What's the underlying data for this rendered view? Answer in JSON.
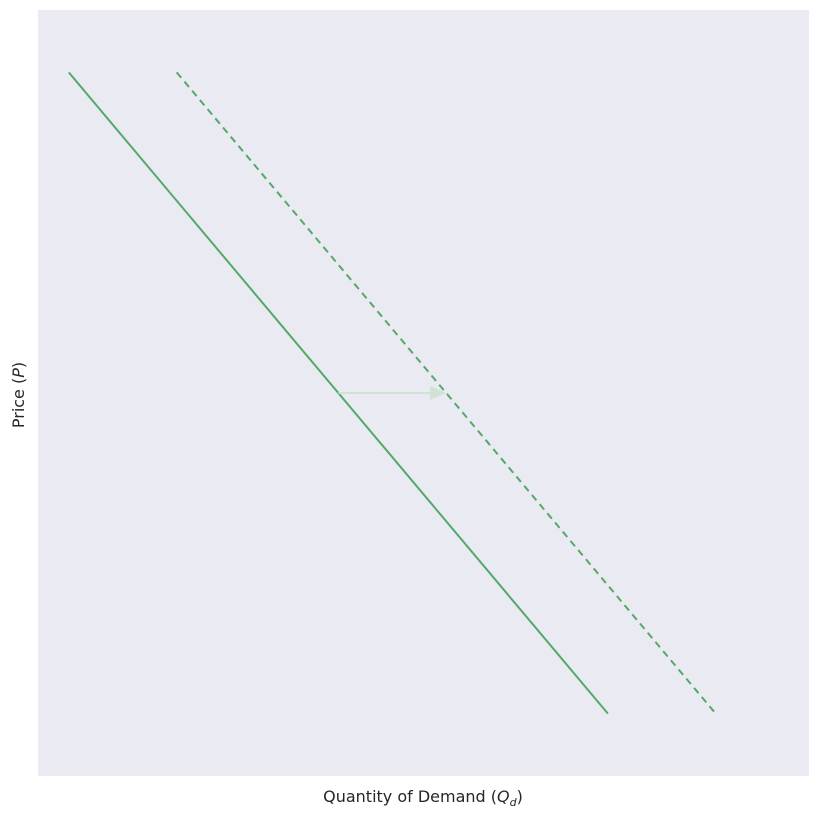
{
  "chart_data": {
    "type": "line",
    "xlabel": "Quantity of Demand",
    "xlabel_symbol": "Q",
    "xlabel_subscript": "d",
    "ylabel": "Price",
    "ylabel_symbol": "P",
    "grid": false,
    "xlim": [
      0,
      10
    ],
    "ylim": [
      0,
      10
    ],
    "series": [
      {
        "style": "solid",
        "color": "#55a868",
        "x": [
          0,
          7.6
        ],
        "y": [
          9.55,
          0.45
        ]
      },
      {
        "style": "dashed",
        "color": "#55a868",
        "x": [
          1.52,
          9.12
        ],
        "y": [
          9.55,
          0.45
        ]
      }
    ],
    "annotations": [
      {
        "type": "arrow",
        "from": [
          3.8,
          5.0
        ],
        "to": [
          5.32,
          5.0
        ],
        "color": "#cfe3d5"
      }
    ],
    "colors": {
      "background": "#eaeaf2",
      "axis_text": "#262626"
    }
  }
}
